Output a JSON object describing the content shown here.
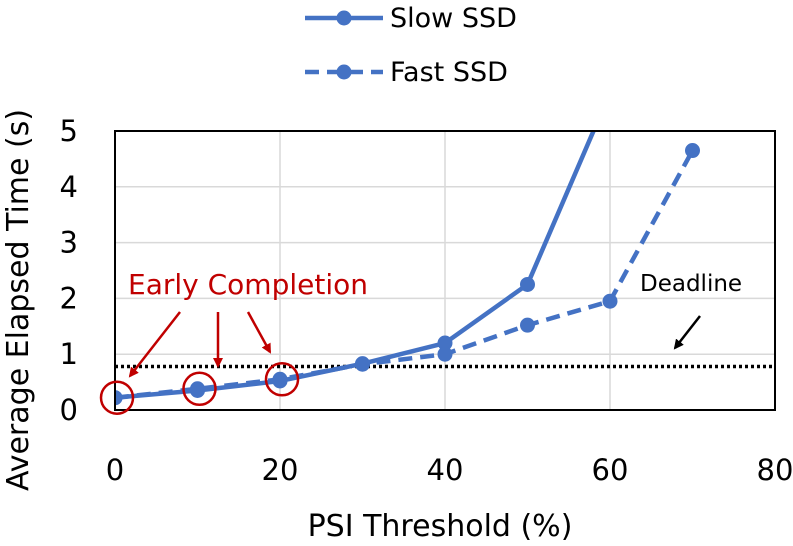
{
  "chart_data": {
    "type": "line",
    "xlabel": "PSI Threshold (%)",
    "ylabel": "Average Elapsed Time (s)",
    "xlim": [
      0,
      80
    ],
    "ylim": [
      0,
      5
    ],
    "xticks": [
      0,
      20,
      40,
      60,
      80
    ],
    "yticks": [
      0,
      1,
      2,
      3,
      4,
      5
    ],
    "grid": true,
    "legend_position": "top",
    "series": [
      {
        "name": "Slow SSD",
        "style": "solid",
        "color": "#4472C4",
        "x": [
          0,
          10,
          20,
          30,
          40,
          50,
          58
        ],
        "y": [
          0.22,
          0.35,
          0.52,
          0.83,
          1.2,
          2.25,
          5.0
        ]
      },
      {
        "name": "Fast SSD",
        "style": "dashed",
        "color": "#4472C4",
        "x": [
          0,
          10,
          20,
          30,
          40,
          50,
          60,
          70
        ],
        "y": [
          0.22,
          0.38,
          0.55,
          0.82,
          1.0,
          1.52,
          1.95,
          4.65
        ]
      }
    ],
    "deadline": {
      "label": "Deadline",
      "y": 0.78
    },
    "annotations": {
      "early_completion": {
        "label": "Early Completion",
        "color": "#C00000",
        "points": [
          {
            "x": 0,
            "y": 0.22
          },
          {
            "x": 10,
            "y": 0.38
          },
          {
            "x": 20,
            "y": 0.55
          }
        ]
      }
    }
  }
}
